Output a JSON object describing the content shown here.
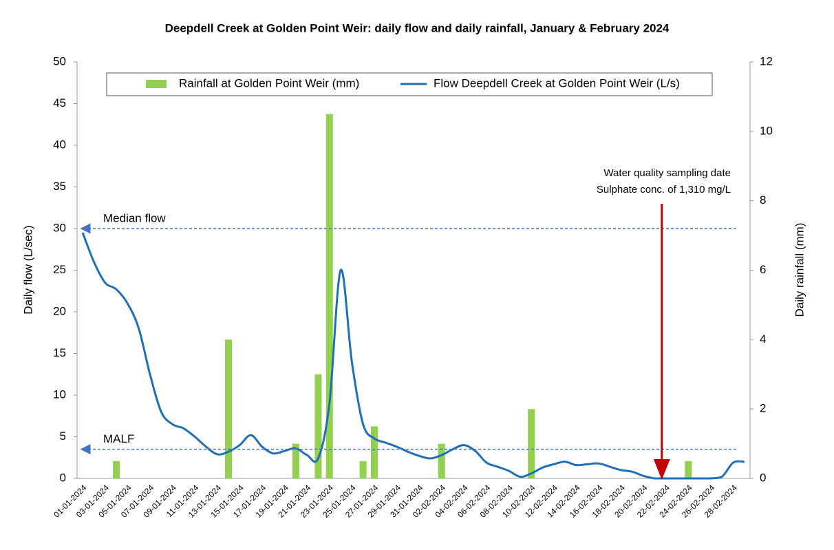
{
  "chart_data": {
    "type": "combo",
    "title": "Deepdell Creek at Golden Point Weir: daily flow and daily rainfall, January & February 2024",
    "y_label": "Daily flow (L/sec)",
    "y2_label": "Daily rainfall (mm)",
    "categories": [
      "01-01-2024",
      null,
      "03-01-2024",
      null,
      "05-01-2024",
      null,
      "07-01-2024",
      null,
      "09-01-2024",
      null,
      "11-01-2024",
      null,
      "13-01-2024",
      null,
      "15-01-2024",
      null,
      "17-01-2024",
      null,
      "19-01-2024",
      null,
      "21-01-2024",
      null,
      "23-01-2024",
      null,
      "25-01-2024",
      null,
      "27-01-2024",
      null,
      "29-01-2024",
      null,
      "31-01-2024",
      null,
      "02-02-2024",
      null,
      "04-02-2024",
      null,
      "06-02-2024",
      null,
      "08-02-2024",
      null,
      "10-02-2024",
      null,
      "12-02-2024",
      null,
      "14-02-2024",
      null,
      "16-02-2024",
      null,
      "18-02-2024",
      null,
      "20-02-2024",
      null,
      "22-02-2024",
      null,
      "24-02-2024",
      null,
      "26-02-2024",
      null,
      "28-02-2024",
      null
    ],
    "series": [
      {
        "name": "Rainfall at Golden Point Weir (mm)",
        "type": "bar",
        "axis": "y2",
        "color": "#92d050",
        "values": [
          0,
          0,
          0,
          0.5,
          0,
          0,
          0,
          0,
          0,
          0,
          0,
          0,
          0,
          4,
          0,
          0,
          0,
          0,
          0,
          1,
          0,
          3,
          10.5,
          0,
          0,
          0.5,
          1.5,
          0,
          0,
          0,
          0,
          0,
          1,
          0,
          0,
          0,
          0,
          0,
          0,
          0,
          2,
          0,
          0,
          0,
          0,
          0,
          0,
          0,
          0,
          0,
          0,
          0,
          0,
          0,
          0.5,
          0,
          0,
          0,
          0,
          0
        ]
      },
      {
        "name": "Flow Deepdell Creek at Golden Point Weir (L/s)",
        "type": "line",
        "color": "#1f6fb5",
        "values": [
          29.5,
          26,
          23.5,
          22.7,
          21,
          18,
          12.5,
          8,
          6.5,
          6,
          5,
          3.8,
          2.9,
          3.2,
          4,
          5.2,
          3.8,
          3,
          3.3,
          3.6,
          2.8,
          2.4,
          9,
          25,
          14,
          6.5,
          4.8,
          4.3,
          3.8,
          3.2,
          2.7,
          2.4,
          2.8,
          3.5,
          4,
          3.3,
          1.9,
          1.4,
          0.9,
          0.2,
          0.6,
          1.3,
          1.7,
          2,
          1.6,
          1.7,
          1.8,
          1.4,
          1,
          0.8,
          0.3,
          0,
          0,
          0,
          0,
          0,
          0,
          0.2,
          1.9,
          2
        ]
      }
    ],
    "ylim": [
      0,
      50
    ],
    "yticks": [
      0,
      5,
      10,
      15,
      20,
      25,
      30,
      35,
      40,
      45,
      50
    ],
    "y2lim": [
      0,
      12
    ],
    "y2ticks": [
      0,
      2,
      4,
      6,
      8,
      10,
      12
    ],
    "reference_lines": [
      {
        "label": "Median flow",
        "value": 30,
        "color": "#4472c4"
      },
      {
        "label": "MALF",
        "value": 3.5,
        "color": "#4472c4"
      }
    ],
    "annotation": {
      "lines": [
        "Water quality sampling date",
        "Sulphate conc. of 1,310 mg/L"
      ],
      "x": "22-02-2024",
      "color": "#c00000"
    },
    "legend": "top"
  }
}
